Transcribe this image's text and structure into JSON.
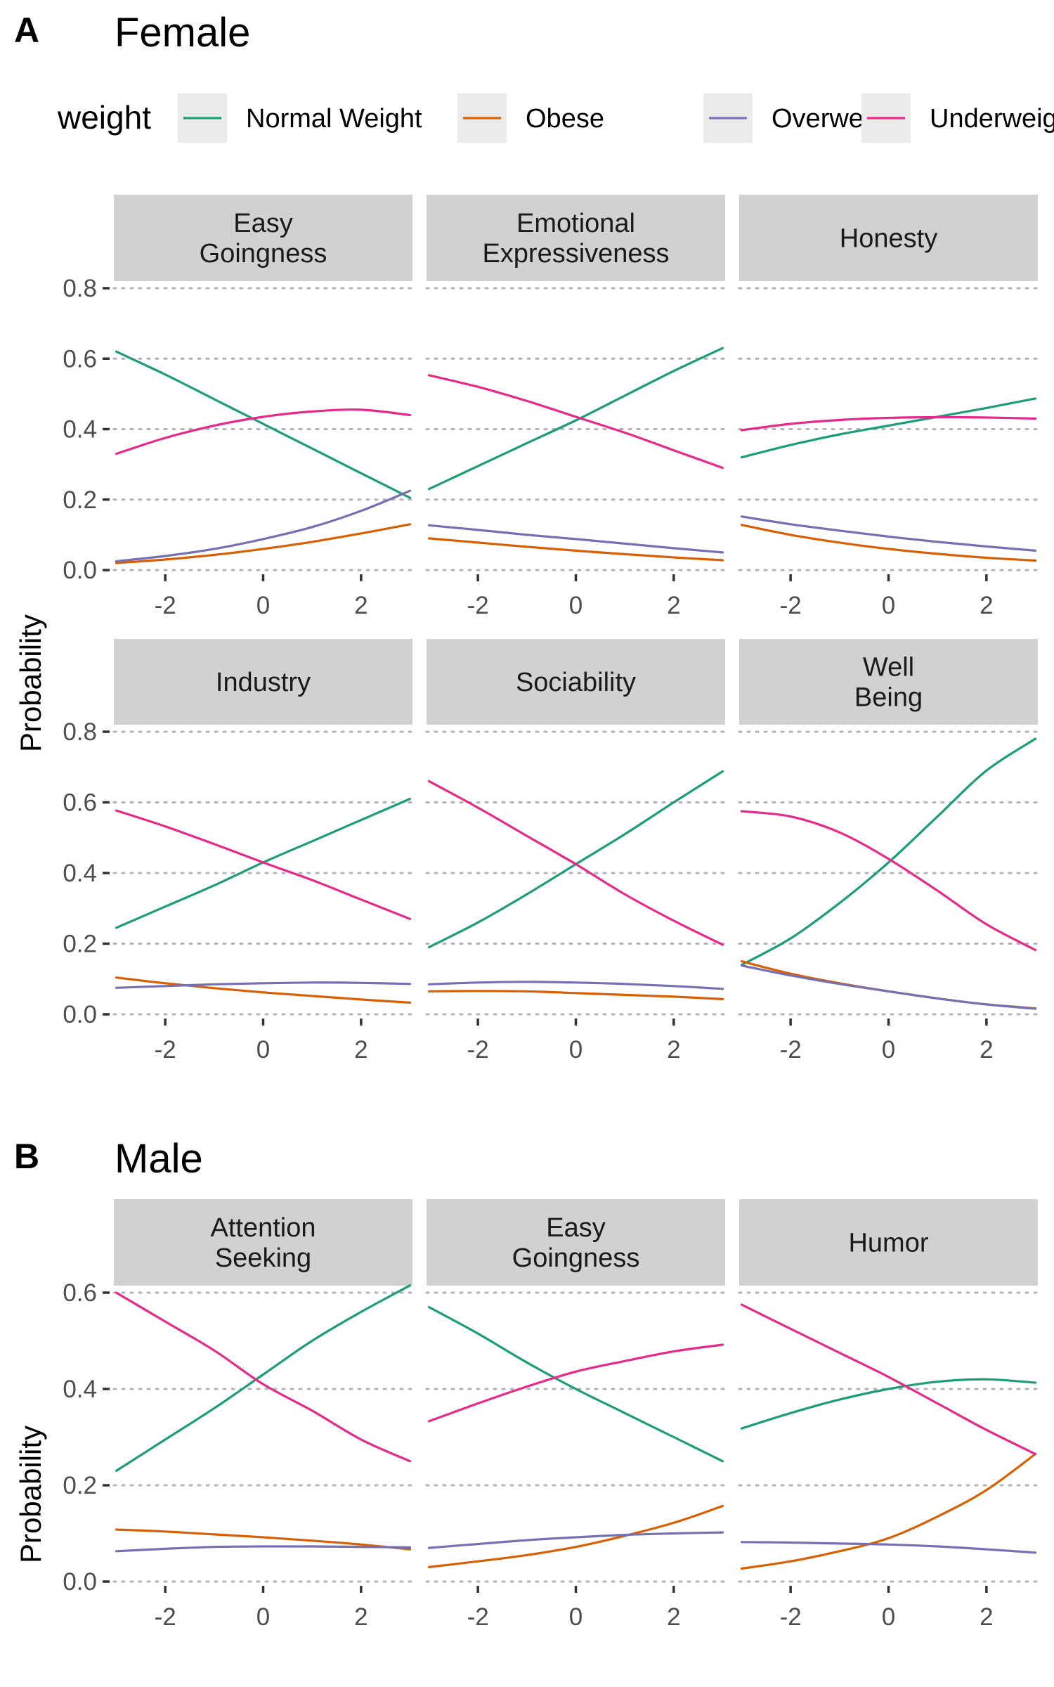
{
  "legend": {
    "title": "weight",
    "entries": [
      {
        "name": "Normal Weight",
        "color": "#1b9e77"
      },
      {
        "name": "Obese",
        "color": "#d95f02"
      },
      {
        "name": "Overweight",
        "color": "#7570b3"
      },
      {
        "name": "Underweight",
        "color": "#e7298a"
      }
    ]
  },
  "chart_data": [
    {
      "type": "line",
      "letter": "A",
      "title": "Female",
      "ylabel": "Probability",
      "xlim": [
        -3.05,
        3.05
      ],
      "ylim": [
        0,
        0.8
      ],
      "xticks": [
        -2,
        0,
        2
      ],
      "yticks": [
        0.0,
        0.2,
        0.4,
        0.6,
        0.8
      ],
      "ytick_labels": [
        "0.0",
        "0.2",
        "0.4",
        "0.6",
        "0.8"
      ],
      "grid": "horizontal dotted",
      "legend": "top",
      "x": [
        -3,
        -2,
        -1,
        0,
        1,
        2,
        3
      ],
      "facets": [
        {
          "label": "Easy\nGoingness",
          "series": [
            {
              "name": "Normal Weight",
              "values": [
                0.62,
                0.555,
                0.485,
                0.415,
                0.345,
                0.275,
                0.205
              ]
            },
            {
              "name": "Obese",
              "values": [
                0.02,
                0.03,
                0.043,
                0.06,
                0.08,
                0.104,
                0.13
              ]
            },
            {
              "name": "Overweight",
              "values": [
                0.025,
                0.04,
                0.06,
                0.088,
                0.122,
                0.168,
                0.225
              ]
            },
            {
              "name": "Underweight",
              "values": [
                0.33,
                0.375,
                0.41,
                0.435,
                0.45,
                0.455,
                0.44
              ]
            }
          ]
        },
        {
          "label": "Emotional\nExpressiveness",
          "series": [
            {
              "name": "Normal Weight",
              "values": [
                0.23,
                0.295,
                0.36,
                0.425,
                0.495,
                0.565,
                0.63
              ]
            },
            {
              "name": "Obese",
              "values": [
                0.09,
                0.078,
                0.066,
                0.055,
                0.045,
                0.036,
                0.028
              ]
            },
            {
              "name": "Overweight",
              "values": [
                0.127,
                0.114,
                0.1,
                0.088,
                0.075,
                0.062,
                0.05
              ]
            },
            {
              "name": "Underweight",
              "values": [
                0.553,
                0.52,
                0.48,
                0.435,
                0.39,
                0.34,
                0.29
              ]
            }
          ]
        },
        {
          "label": "Honesty",
          "series": [
            {
              "name": "Normal Weight",
              "values": [
                0.32,
                0.355,
                0.385,
                0.41,
                0.435,
                0.46,
                0.487
              ]
            },
            {
              "name": "Obese",
              "values": [
                0.128,
                0.1,
                0.078,
                0.06,
                0.046,
                0.035,
                0.027
              ]
            },
            {
              "name": "Overweight",
              "values": [
                0.152,
                0.13,
                0.112,
                0.095,
                0.08,
                0.067,
                0.055
              ]
            },
            {
              "name": "Underweight",
              "values": [
                0.397,
                0.415,
                0.426,
                0.432,
                0.434,
                0.433,
                0.43
              ]
            }
          ]
        },
        {
          "label": "Industry",
          "series": [
            {
              "name": "Normal Weight",
              "values": [
                0.245,
                0.305,
                0.365,
                0.43,
                0.49,
                0.55,
                0.61
              ]
            },
            {
              "name": "Obese",
              "values": [
                0.104,
                0.088,
                0.074,
                0.062,
                0.052,
                0.042,
                0.033
              ]
            },
            {
              "name": "Overweight",
              "values": [
                0.075,
                0.08,
                0.085,
                0.088,
                0.09,
                0.089,
                0.086
              ]
            },
            {
              "name": "Underweight",
              "values": [
                0.577,
                0.532,
                0.482,
                0.43,
                0.38,
                0.325,
                0.27
              ]
            }
          ]
        },
        {
          "label": "Sociability",
          "series": [
            {
              "name": "Normal Weight",
              "values": [
                0.19,
                0.26,
                0.34,
                0.425,
                0.51,
                0.6,
                0.688
              ]
            },
            {
              "name": "Obese",
              "values": [
                0.065,
                0.066,
                0.065,
                0.06,
                0.055,
                0.05,
                0.043
              ]
            },
            {
              "name": "Overweight",
              "values": [
                0.085,
                0.09,
                0.092,
                0.09,
                0.086,
                0.08,
                0.072
              ]
            },
            {
              "name": "Underweight",
              "values": [
                0.66,
                0.585,
                0.505,
                0.425,
                0.34,
                0.265,
                0.197
              ]
            }
          ]
        },
        {
          "label": "Well\nBeing",
          "series": [
            {
              "name": "Normal Weight",
              "values": [
                0.14,
                0.215,
                0.315,
                0.43,
                0.56,
                0.69,
                0.78
              ]
            },
            {
              "name": "Obese",
              "values": [
                0.15,
                0.115,
                0.088,
                0.065,
                0.045,
                0.028,
                0.017
              ]
            },
            {
              "name": "Overweight",
              "values": [
                0.138,
                0.11,
                0.086,
                0.065,
                0.045,
                0.028,
                0.016
              ]
            },
            {
              "name": "Underweight",
              "values": [
                0.575,
                0.56,
                0.515,
                0.44,
                0.35,
                0.255,
                0.182
              ]
            }
          ]
        }
      ]
    },
    {
      "type": "line",
      "letter": "B",
      "title": "Male",
      "ylabel": "Probability",
      "xlim": [
        -3.05,
        3.05
      ],
      "ylim": [
        0,
        0.6
      ],
      "xticks": [
        -2,
        0,
        2
      ],
      "yticks": [
        0.0,
        0.2,
        0.4,
        0.6
      ],
      "ytick_labels": [
        "0.0",
        "0.2",
        "0.4",
        "0.6"
      ],
      "grid": "horizontal dotted",
      "x": [
        -3,
        -2,
        -1,
        0,
        1,
        2,
        3
      ],
      "facets": [
        {
          "label": "Attention\nSeeking",
          "series": [
            {
              "name": "Normal Weight",
              "values": [
                0.23,
                0.295,
                0.36,
                0.43,
                0.5,
                0.56,
                0.615
              ]
            },
            {
              "name": "Obese",
              "values": [
                0.108,
                0.104,
                0.098,
                0.092,
                0.085,
                0.077,
                0.067
              ]
            },
            {
              "name": "Overweight",
              "values": [
                0.063,
                0.068,
                0.072,
                0.073,
                0.073,
                0.072,
                0.071
              ]
            },
            {
              "name": "Underweight",
              "values": [
                0.6,
                0.54,
                0.48,
                0.41,
                0.355,
                0.295,
                0.25
              ]
            }
          ]
        },
        {
          "label": "Easy\nGoingness",
          "series": [
            {
              "name": "Normal Weight",
              "values": [
                0.57,
                0.515,
                0.455,
                0.4,
                0.35,
                0.3,
                0.25
              ]
            },
            {
              "name": "Obese",
              "values": [
                0.03,
                0.042,
                0.055,
                0.072,
                0.095,
                0.122,
                0.157
              ]
            },
            {
              "name": "Overweight",
              "values": [
                0.07,
                0.078,
                0.086,
                0.092,
                0.097,
                0.1,
                0.102
              ]
            },
            {
              "name": "Underweight",
              "values": [
                0.333,
                0.37,
                0.405,
                0.436,
                0.458,
                0.478,
                0.492
              ]
            }
          ]
        },
        {
          "label": "Humor",
          "series": [
            {
              "name": "Normal Weight",
              "values": [
                0.318,
                0.35,
                0.378,
                0.4,
                0.415,
                0.42,
                0.413
              ]
            },
            {
              "name": "Obese",
              "values": [
                0.027,
                0.042,
                0.063,
                0.09,
                0.135,
                0.19,
                0.265
              ]
            },
            {
              "name": "Overweight",
              "values": [
                0.082,
                0.081,
                0.079,
                0.077,
                0.073,
                0.067,
                0.06
              ]
            },
            {
              "name": "Underweight",
              "values": [
                0.575,
                0.525,
                0.475,
                0.425,
                0.37,
                0.315,
                0.265
              ]
            }
          ]
        }
      ]
    }
  ]
}
